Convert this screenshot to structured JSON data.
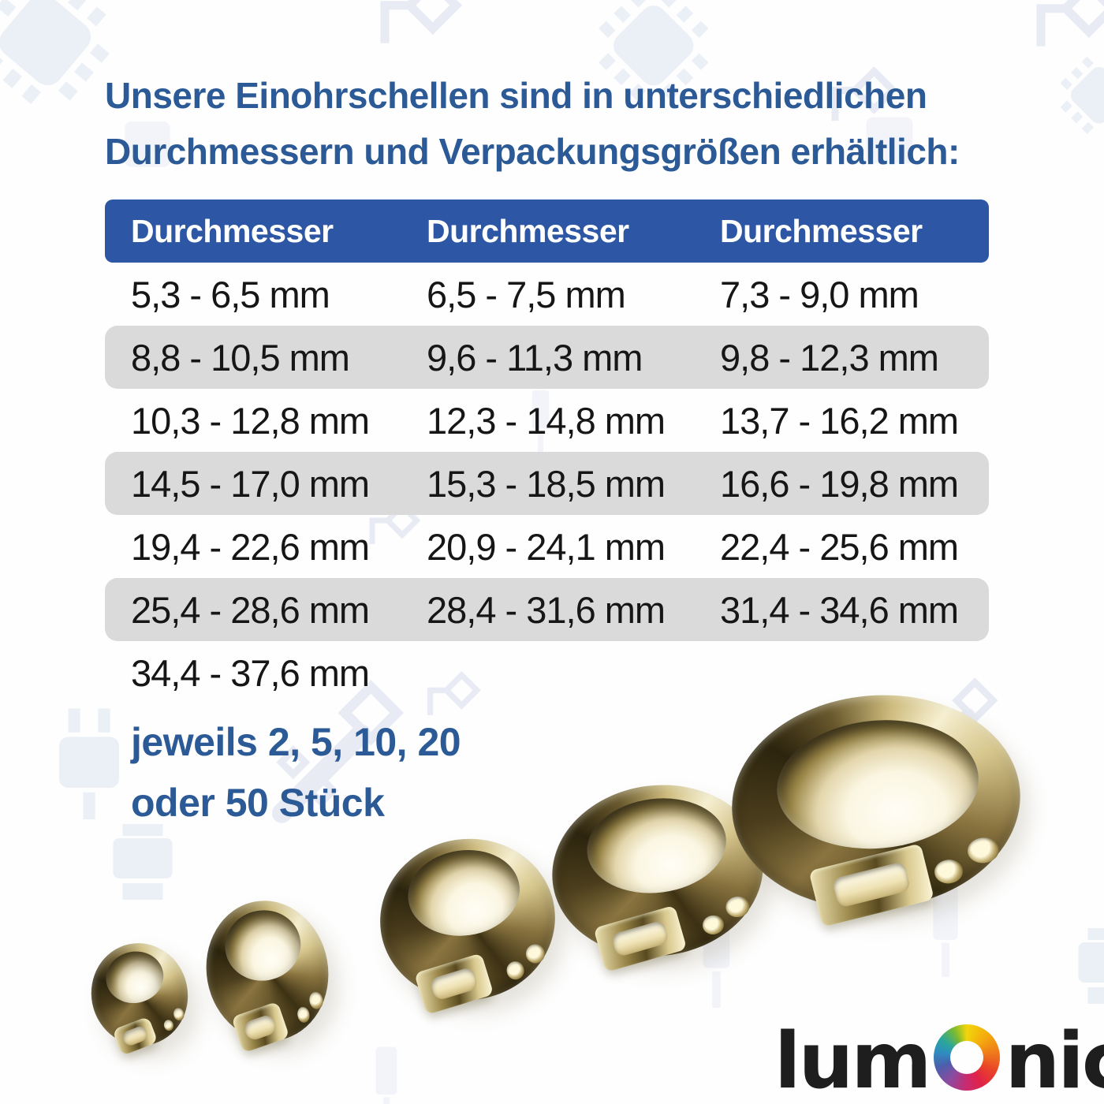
{
  "page": {
    "heading_line1": "Unsere Einohrschellen sind in unterschiedlichen",
    "heading_line2": "Durchmessern und Verpackungsgrößen erhältlich:"
  },
  "table": {
    "headers": [
      "Durchmesser",
      "Durchmesser",
      "Durchmesser"
    ],
    "rows": [
      [
        "5,3 - 6,5 mm",
        "6,5 - 7,5 mm",
        "7,3 - 9,0 mm"
      ],
      [
        "8,8 - 10,5 mm",
        "9,6 - 11,3 mm",
        "9,8 - 12,3 mm"
      ],
      [
        "10,3 - 12,8 mm",
        "12,3 - 14,8 mm",
        "13,7 - 16,2 mm"
      ],
      [
        "14,5 - 17,0 mm",
        "15,3 - 18,5 mm",
        "16,6 - 19,8 mm"
      ],
      [
        "19,4 - 22,6 mm",
        "20,9 - 24,1 mm",
        "22,4 - 25,6 mm"
      ],
      [
        "25,4 - 28,6 mm",
        "28,4 - 31,6 mm",
        "31,4 - 34,6 mm"
      ],
      [
        "34,4 - 37,6 mm",
        "",
        ""
      ]
    ]
  },
  "packaging": {
    "line1": "jeweils 2, 5, 10, 20",
    "line2": "oder 50 Stück"
  },
  "photo": {
    "clamp_count": 5
  },
  "logo": {
    "prefix": "lum",
    "suffix": "nic",
    "ring_icon": "color-wheel-ring-icon",
    "ring_colors": [
      "#f2d50c",
      "#ef7b1b",
      "#ea4526",
      "#e02248",
      "#8e4a9e",
      "#4a5fad",
      "#2f8cc0",
      "#2aa79b",
      "#7ab931"
    ]
  },
  "colors": {
    "accent_blue": "#2b5a96",
    "table_header_blue": "#2d57a4",
    "row_gray": "#dadada",
    "cell_text": "#161616",
    "logo_black": "#1e1e1e"
  },
  "background": {
    "icon_names": [
      "chip-icon",
      "diamond-connector-icon",
      "plug-icon",
      "printer-icon",
      "pin-header-icon",
      "square-icon",
      "cable-connector-icon"
    ]
  }
}
